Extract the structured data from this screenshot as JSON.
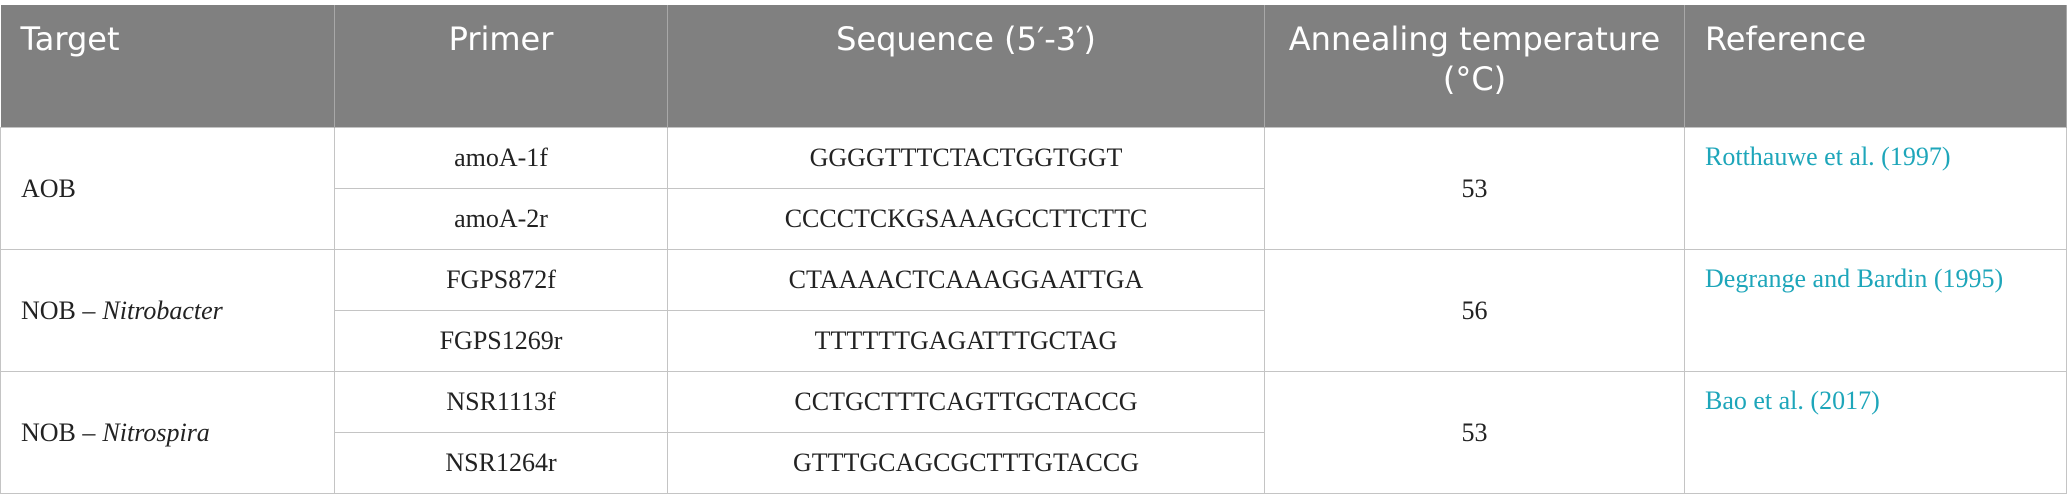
{
  "table": {
    "header": [
      "Target",
      "Primer",
      "Sequence (5′-3′)",
      "Annealing temperature (°C)",
      "Reference"
    ],
    "groups": [
      {
        "target": {
          "text": "AOB"
        },
        "primers": [
          {
            "name": "amoA-1f",
            "sequence": "GGGGTTTCTACTGGTGGT"
          },
          {
            "name": "amoA-2r",
            "sequence": "CCCCTCKGSAAAGCCTTCTTC"
          }
        ],
        "temperature": 53,
        "reference": "Rotthauwe et al. (1997)"
      },
      {
        "target": {
          "text": "NOB –",
          "italic": "Nitrobacter"
        },
        "primers": [
          {
            "name": "FGPS872f",
            "sequence": "CTAAAACTCAAAGGAATTGA"
          },
          {
            "name": "FGPS1269r",
            "sequence": "TTTTTTGAGATTTGCTAG"
          }
        ],
        "temperature": 56,
        "reference": "Degrange and Bardin (1995)"
      },
      {
        "target": {
          "text": "NOB –",
          "italic": "Nitrospira"
        },
        "primers": [
          {
            "name": "NSR1113f",
            "sequence": "CCTGCTTTCAGTTGCTACCG"
          },
          {
            "name": "NSR1264r",
            "sequence": "GTTTGCAGCGCTTTGTACCG"
          }
        ],
        "temperature": 53,
        "reference": "Bao et al. (2017)"
      }
    ]
  }
}
